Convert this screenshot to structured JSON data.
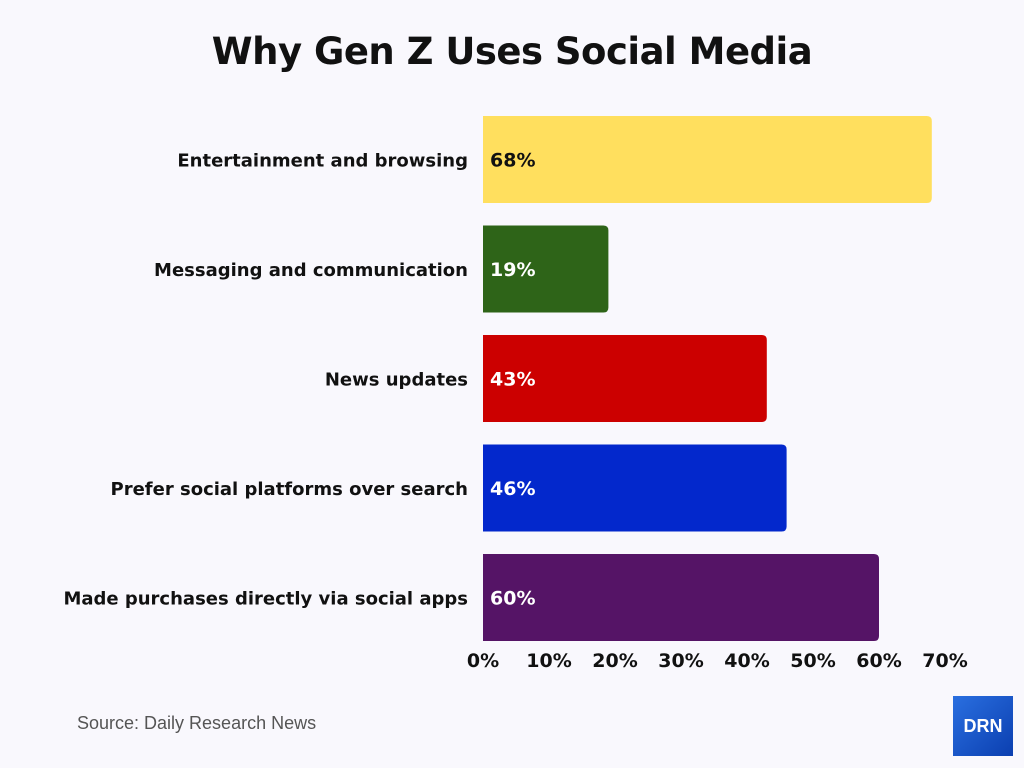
{
  "chart_data": {
    "type": "bar",
    "orientation": "horizontal",
    "title": "Why Gen Z Uses Social Media",
    "categories": [
      "Entertainment and browsing",
      "Messaging and communication",
      "News updates",
      "Prefer social platforms over search",
      "Made purchases directly via social apps"
    ],
    "values": [
      68,
      19,
      43,
      46,
      60
    ],
    "data_labels": [
      "68%",
      "19%",
      "43%",
      "46%",
      "60%"
    ],
    "colors": [
      "#ffdf5e",
      "#2e6418",
      "#cc0000",
      "#0328cc",
      "#551466"
    ],
    "label_colors": [
      "#111111",
      "#ffffff",
      "#ffffff",
      "#ffffff",
      "#ffffff"
    ],
    "xlim": [
      0,
      70
    ],
    "x_ticks": [
      0,
      10,
      20,
      30,
      40,
      50,
      60,
      70
    ],
    "x_tick_labels": [
      "0%",
      "10%",
      "20%",
      "30%",
      "40%",
      "50%",
      "60%",
      "70%"
    ],
    "xlabel": "",
    "ylabel": "",
    "grid": false,
    "legend": "none"
  },
  "source": "Source: Daily Research News",
  "logo_text": "DRN"
}
